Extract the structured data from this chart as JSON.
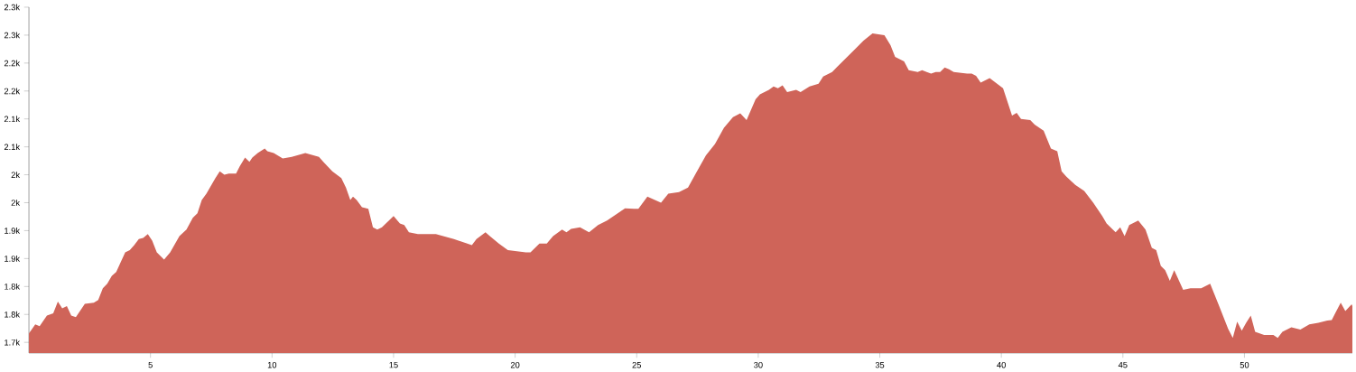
{
  "chart_data": {
    "type": "area",
    "color": "#cf6459",
    "x": [
      0.0,
      0.26,
      0.44,
      0.74,
      1.0,
      1.19,
      1.37,
      1.56,
      1.74,
      1.93,
      2.3,
      2.67,
      2.85,
      3.04,
      3.22,
      3.41,
      3.59,
      3.96,
      4.15,
      4.33,
      4.52,
      4.7,
      4.89,
      5.07,
      5.26,
      5.56,
      5.81,
      6.19,
      6.48,
      6.74,
      6.93,
      7.11,
      7.3,
      7.67,
      7.85,
      8.04,
      8.22,
      8.52,
      8.67,
      8.89,
      9.07,
      9.19,
      9.41,
      9.7,
      9.81,
      10.07,
      10.44,
      10.81,
      11.37,
      11.93,
      12.11,
      12.48,
      12.85,
      13.04,
      13.22,
      13.33,
      13.48,
      13.7,
      13.96,
      14.15,
      14.33,
      14.52,
      15.0,
      15.26,
      15.44,
      15.63,
      16.0,
      16.74,
      17.48,
      18.22,
      18.41,
      18.78,
      18.96,
      19.33,
      19.7,
      20.44,
      20.63,
      21.0,
      21.3,
      21.56,
      21.93,
      22.11,
      22.3,
      22.67,
      23.04,
      23.41,
      23.78,
      24.15,
      24.52,
      24.89,
      25.07,
      25.44,
      26.0,
      26.3,
      26.74,
      27.11,
      27.48,
      27.85,
      28.22,
      28.59,
      28.96,
      29.26,
      29.52,
      29.89,
      30.07,
      30.44,
      30.63,
      30.81,
      31.0,
      31.19,
      31.56,
      31.74,
      32.11,
      32.48,
      32.67,
      33.04,
      33.22,
      33.59,
      33.96,
      34.33,
      34.7,
      35.19,
      35.44,
      35.63,
      36.0,
      36.19,
      36.56,
      36.74,
      36.93,
      37.11,
      37.3,
      37.48,
      37.67,
      37.85,
      38.04,
      38.59,
      38.78,
      38.96,
      39.15,
      39.52,
      40.07,
      40.44,
      40.63,
      40.81,
      41.19,
      41.37,
      41.74,
      42.04,
      42.3,
      42.48,
      42.67,
      43.04,
      43.41,
      43.78,
      44.15,
      44.33,
      44.7,
      44.89,
      45.07,
      45.26,
      45.63,
      45.93,
      46.19,
      46.37,
      46.56,
      46.74,
      46.93,
      47.11,
      47.48,
      47.78,
      48.22,
      48.59,
      48.96,
      49.33,
      49.52,
      49.7,
      49.89,
      50.07,
      50.26,
      50.44,
      50.81,
      51.19,
      51.37,
      51.56,
      51.93,
      52.3,
      52.67,
      53.04,
      53.41,
      53.59,
      53.78,
      53.96,
      54.15,
      54.41,
      54.44
    ],
    "values": [
      1716,
      1732,
      1729,
      1748,
      1752,
      1773,
      1761,
      1765,
      1748,
      1745,
      1769,
      1771,
      1776,
      1797,
      1805,
      1819,
      1826,
      1861,
      1865,
      1874,
      1885,
      1887,
      1894,
      1882,
      1861,
      1848,
      1861,
      1890,
      1902,
      1923,
      1931,
      1955,
      1966,
      1994,
      2006,
      2000,
      2002,
      2002,
      2015,
      2031,
      2023,
      2031,
      2039,
      2047,
      2042,
      2039,
      2029,
      2032,
      2039,
      2032,
      2023,
      2006,
      1994,
      1977,
      1955,
      1961,
      1955,
      1942,
      1939,
      1906,
      1902,
      1906,
      1926,
      1913,
      1910,
      1897,
      1894,
      1894,
      1885,
      1874,
      1885,
      1897,
      1890,
      1877,
      1865,
      1861,
      1861,
      1877,
      1877,
      1890,
      1902,
      1897,
      1903,
      1906,
      1897,
      1910,
      1918,
      1929,
      1940,
      1939,
      1939,
      1961,
      1950,
      1966,
      1969,
      1977,
      2006,
      2035,
      2055,
      2084,
      2103,
      2110,
      2098,
      2135,
      2144,
      2152,
      2158,
      2155,
      2160,
      2148,
      2152,
      2148,
      2158,
      2163,
      2176,
      2184,
      2192,
      2208,
      2224,
      2240,
      2253,
      2250,
      2232,
      2211,
      2203,
      2187,
      2184,
      2187,
      2184,
      2181,
      2184,
      2184,
      2192,
      2189,
      2184,
      2181,
      2181,
      2177,
      2165,
      2173,
      2155,
      2106,
      2111,
      2100,
      2098,
      2090,
      2079,
      2047,
      2042,
      2006,
      1997,
      1982,
      1971,
      1950,
      1926,
      1913,
      1897,
      1906,
      1890,
      1910,
      1918,
      1902,
      1869,
      1865,
      1837,
      1829,
      1810,
      1829,
      1794,
      1797,
      1797,
      1805,
      1765,
      1724,
      1708,
      1737,
      1721,
      1735,
      1748,
      1719,
      1713,
      1713,
      1708,
      1719,
      1727,
      1723,
      1732,
      1735,
      1739,
      1740,
      1756,
      1771,
      1756,
      1768,
      1765
    ],
    "xlim": [
      0,
      54.44
    ],
    "ylim": [
      1681,
      2300
    ],
    "xticks": [
      5,
      10,
      15,
      20,
      25,
      30,
      35,
      40,
      45,
      50
    ],
    "yticks": [
      {
        "value": 1700,
        "label": "1.7k"
      },
      {
        "value": 1750,
        "label": "1.8k"
      },
      {
        "value": 1800,
        "label": "1.8k"
      },
      {
        "value": 1850,
        "label": "1.9k"
      },
      {
        "value": 1900,
        "label": "1.9k"
      },
      {
        "value": 1950,
        "label": "2k"
      },
      {
        "value": 2000,
        "label": "2k"
      },
      {
        "value": 2050,
        "label": "2.1k"
      },
      {
        "value": 2100,
        "label": "2.1k"
      },
      {
        "value": 2150,
        "label": "2.2k"
      },
      {
        "value": 2200,
        "label": "2.2k"
      },
      {
        "value": 2250,
        "label": "2.3k"
      },
      {
        "value": 2300,
        "label": "2.3k"
      }
    ]
  }
}
